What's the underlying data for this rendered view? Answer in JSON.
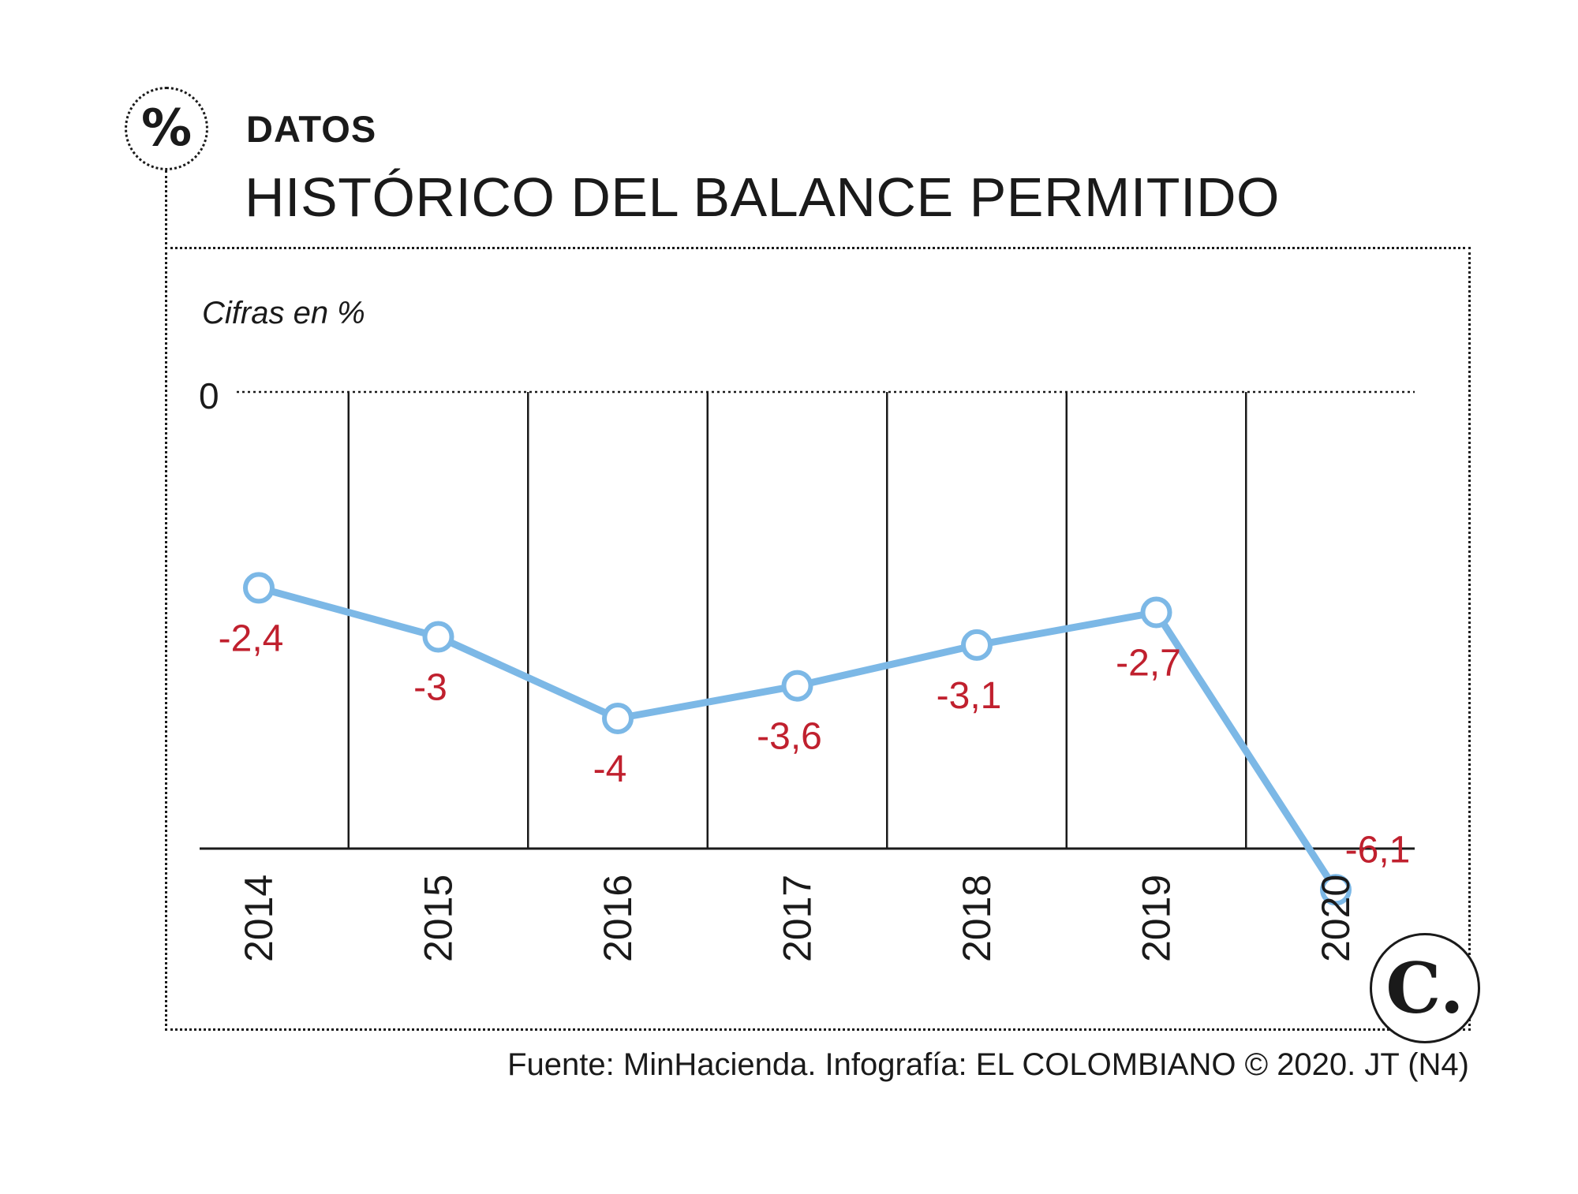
{
  "header": {
    "badge_symbol": "%",
    "kicker": "DATOS",
    "title": "HISTÓRICO DEL BALANCE PERMITIDO"
  },
  "chart_data": {
    "type": "line",
    "unit_label": "Cifras en %",
    "categories": [
      "2014",
      "2015",
      "2016",
      "2017",
      "2018",
      "2019",
      "2020"
    ],
    "values": [
      -2.4,
      -3,
      -4,
      -3.6,
      -3.1,
      -2.7,
      -6.1
    ],
    "value_labels": [
      "-2,4",
      "-3",
      "-4",
      "-3,6",
      "-3,1",
      "-2,7",
      "-6,1"
    ],
    "y_tick_labels": [
      "0"
    ],
    "ylim": [
      -6.5,
      0
    ],
    "grid": "vertical separators between years, dotted zero line",
    "colors": {
      "line": "#7cb8e6",
      "marker_fill": "#ffffff",
      "value_label": "#c0202e",
      "axis": "#1a1a1a"
    }
  },
  "footer": {
    "source": "Fuente: MinHacienda. Infografía: EL COLOMBIANO © 2020. JT (N4)",
    "logo_text": "C."
  }
}
